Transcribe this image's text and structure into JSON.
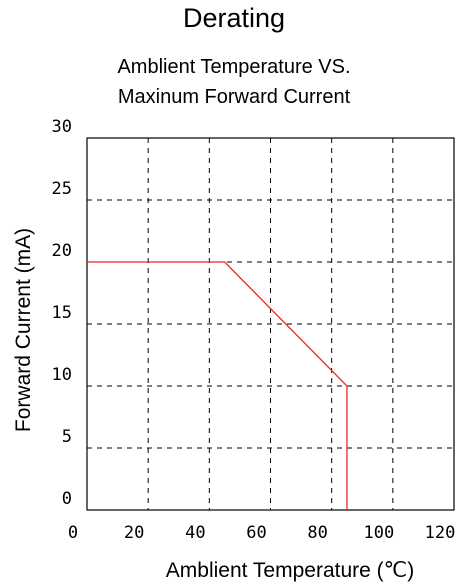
{
  "chart_data": {
    "type": "line",
    "title": "Derating",
    "subtitle_lines": [
      "Amblient Temperature VS.",
      "Maxinum Forward Current"
    ],
    "xlabel": "Amblient Temperature (℃)",
    "ylabel": "Forward Current (mA)",
    "xlim": [
      0,
      120
    ],
    "ylim": [
      0,
      30
    ],
    "x_ticks": [
      0,
      20,
      40,
      60,
      80,
      100,
      120
    ],
    "y_ticks": [
      0,
      5,
      10,
      15,
      20,
      25,
      30
    ],
    "grid": true,
    "series": [
      {
        "color": "#e8262a",
        "points": [
          [
            0,
            20
          ],
          [
            45,
            20
          ],
          [
            85,
            10
          ],
          [
            85,
            0
          ]
        ]
      }
    ]
  }
}
